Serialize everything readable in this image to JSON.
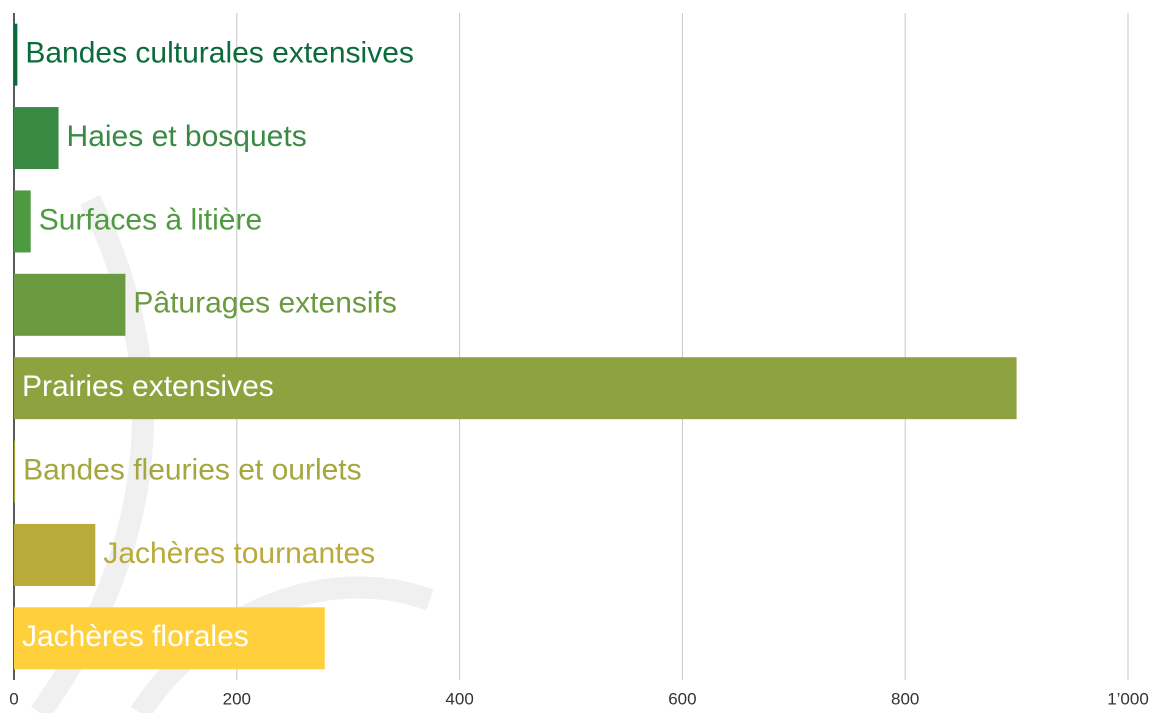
{
  "chart_data": {
    "type": "bar",
    "orientation": "horizontal",
    "categories": [
      "Bandes culturales extensives",
      "Haies et bosquets",
      "Surfaces à litière",
      "Pâturages extensifs",
      "Prairies extensives",
      "Bandes fleuries et ourlets",
      "Jachères tournantes",
      "Jachères florales"
    ],
    "values": [
      3,
      40,
      15,
      100,
      900,
      1,
      73,
      279
    ],
    "colors": [
      "#0b6b3a",
      "#3a8a44",
      "#4e9a40",
      "#6b9a40",
      "#8ea33f",
      "#a6a63f",
      "#b9aa3a",
      "#ffd03c"
    ],
    "xlim": [
      0,
      1000
    ],
    "xticks": [
      0,
      200,
      400,
      600,
      800,
      {
        "value": 1000,
        "label": "1’000"
      }
    ],
    "grid": true
  }
}
